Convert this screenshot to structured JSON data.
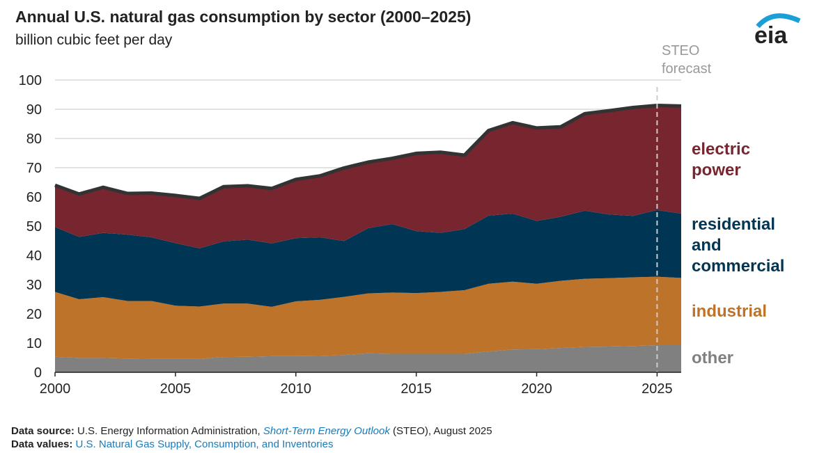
{
  "chart_data": {
    "type": "stacked-area",
    "title": "Annual U.S. natural gas consumption by sector (2000–2025)",
    "subtitle": "billion cubic feet per day",
    "logo": "eia",
    "annotation": "STEO forecast",
    "forecast_start": 2025,
    "x": [
      2000,
      2001,
      2002,
      2003,
      2004,
      2005,
      2006,
      2007,
      2008,
      2009,
      2010,
      2011,
      2012,
      2013,
      2014,
      2015,
      2016,
      2017,
      2018,
      2019,
      2020,
      2021,
      2022,
      2023,
      2024,
      2025,
      2026
    ],
    "series": [
      {
        "name": "other",
        "color": "#808080",
        "values": [
          5.3,
          4.9,
          4.9,
          4.7,
          4.6,
          4.6,
          4.6,
          5.2,
          5.3,
          5.5,
          5.5,
          5.6,
          5.9,
          6.5,
          6.3,
          6.3,
          6.3,
          6.3,
          7.1,
          7.8,
          7.9,
          8.3,
          8.7,
          8.8,
          9.0,
          9.3,
          9.3
        ]
      },
      {
        "name": "industrial",
        "color": "#bd732a",
        "values": [
          22.2,
          20.1,
          20.8,
          19.7,
          19.8,
          18.2,
          17.9,
          18.3,
          18.2,
          16.9,
          18.8,
          19.2,
          19.9,
          20.5,
          21.0,
          20.8,
          21.2,
          21.8,
          23.2,
          23.2,
          22.4,
          23.0,
          23.3,
          23.4,
          23.5,
          23.4,
          23.0
        ]
      },
      {
        "name": "residential and commercial",
        "color": "#003553",
        "values": [
          22.2,
          21.3,
          22.0,
          22.7,
          21.8,
          21.4,
          19.9,
          21.3,
          21.9,
          21.7,
          21.6,
          21.4,
          19.1,
          22.3,
          23.4,
          21.2,
          20.2,
          20.9,
          23.3,
          23.3,
          21.5,
          21.9,
          23.3,
          21.8,
          21.0,
          22.8,
          22.0
        ]
      },
      {
        "name": "electric power",
        "color": "#772630",
        "values": [
          14.3,
          14.7,
          15.6,
          14.1,
          15.1,
          16.3,
          17.1,
          18.7,
          18.4,
          18.8,
          20.1,
          21.0,
          25.0,
          22.6,
          22.5,
          26.6,
          27.6,
          25.3,
          29.1,
          31.1,
          31.8,
          30.8,
          33.2,
          35.5,
          37.1,
          35.8,
          36.8
        ]
      }
    ],
    "total_line_color": "#333333",
    "xlim": [
      2000,
      2026
    ],
    "xticks": [
      2000,
      2005,
      2010,
      2015,
      2020,
      2025
    ],
    "ylim": [
      0,
      100
    ],
    "yticks": [
      0,
      10,
      20,
      30,
      40,
      50,
      60,
      70,
      80,
      90,
      100
    ],
    "grid": true,
    "footer": {
      "source_label": "Data source:",
      "source_text": "U.S. Energy Information Administration,",
      "source_link": "Short-Term Energy Outlook",
      "source_rest": "(STEO), August 2025",
      "values_label": "Data values:",
      "values_link": "U.S. Natural Gas Supply, Consumption, and Inventories"
    }
  }
}
